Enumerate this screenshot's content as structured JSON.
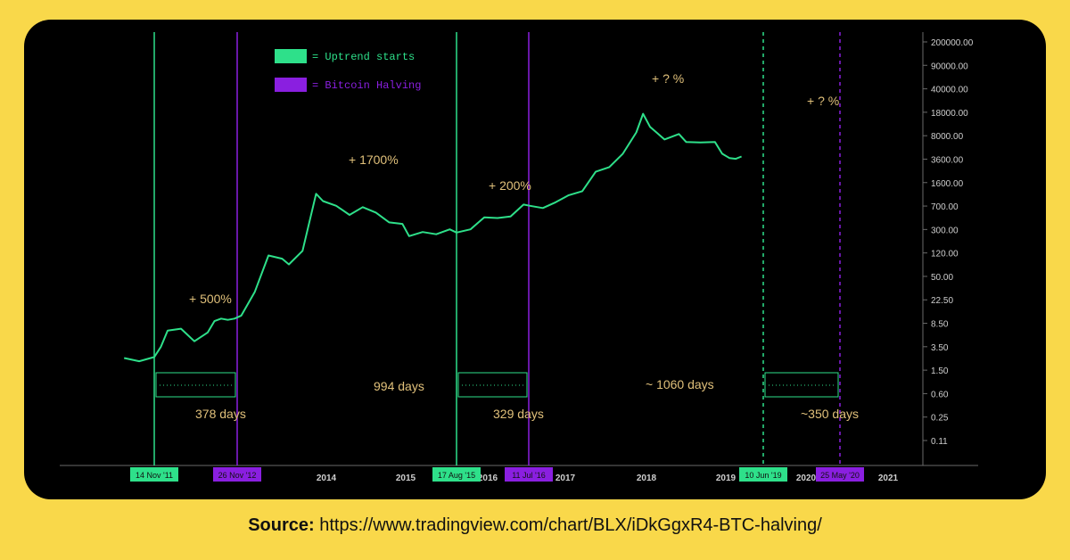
{
  "source": {
    "label": "Source:",
    "url": "https://www.tradingview.com/chart/BLX/iDkGgxR4-BTC-halving/"
  },
  "colors": {
    "page_bg": "#f9d84a",
    "panel_bg": "#000000",
    "uptrend": "#2ee08a",
    "halving": "#8a1fe0",
    "annotation": "#e0c07a",
    "axis_text": "#cfcfcf"
  },
  "chart_data": {
    "type": "line",
    "scale": "log",
    "price_ticks": [
      "200000.00",
      "90000.00",
      "40000.00",
      "18000.00",
      "8000.00",
      "3600.00",
      "1600.00",
      "700.00",
      "300.00",
      "120.00",
      "50.00",
      "22.50",
      "8.50",
      "3.50",
      "1.50",
      "0.60",
      "0.25",
      "0.11"
    ],
    "year_ticks": [
      "2014",
      "2015",
      "2016",
      "2017",
      "2018",
      "2019",
      "2020",
      "2021"
    ],
    "legend": [
      {
        "label": "= Uptrend starts",
        "color_key": "uptrend"
      },
      {
        "label": "= Bitcoin Halving",
        "color_key": "halving"
      }
    ],
    "events": [
      {
        "kind": "uptrend",
        "date_label": "14 Nov '11",
        "style": "solid"
      },
      {
        "kind": "halving",
        "date_label": "26 Nov '12",
        "style": "solid"
      },
      {
        "kind": "uptrend",
        "date_label": "17 Aug '15",
        "style": "solid"
      },
      {
        "kind": "halving",
        "date_label": "11 Jul '16",
        "style": "solid"
      },
      {
        "kind": "uptrend",
        "date_label": "10 Jun '19",
        "style": "dashed"
      },
      {
        "kind": "halving",
        "date_label": "25 May '20",
        "style": "dashed"
      }
    ],
    "annotations": {
      "gains": [
        "+ 500%",
        "+ 1700%",
        "+ 200%",
        "+ ? %",
        "+ ? %"
      ],
      "intervals": [
        "378 days",
        "994 days",
        "329 days",
        "~ 1060 days",
        "~350 days"
      ]
    },
    "series": [
      {
        "points": [
          [
            "2011-09",
            2.8
          ],
          [
            "2011-10",
            2.5
          ],
          [
            "2011-11",
            2.9
          ],
          [
            "2011-12",
            4.2
          ],
          [
            "2012-01",
            7.5
          ],
          [
            "2012-03",
            8.0
          ],
          [
            "2012-05",
            5.1
          ],
          [
            "2012-07",
            7.0
          ],
          [
            "2012-08",
            10.5
          ],
          [
            "2012-09",
            11.5
          ],
          [
            "2012-10",
            11.0
          ],
          [
            "2012-11",
            11.5
          ],
          [
            "2012-12",
            12.8
          ],
          [
            "2013-02",
            30
          ],
          [
            "2013-04",
            110
          ],
          [
            "2013-06",
            98
          ],
          [
            "2013-07",
            80
          ],
          [
            "2013-09",
            130
          ],
          [
            "2013-11",
            1000
          ],
          [
            "2013-12",
            770
          ],
          [
            "2014-02",
            650
          ],
          [
            "2014-04",
            470
          ],
          [
            "2014-06",
            620
          ],
          [
            "2014-08",
            510
          ],
          [
            "2014-10",
            360
          ],
          [
            "2014-12",
            340
          ],
          [
            "2015-01",
            220
          ],
          [
            "2015-03",
            255
          ],
          [
            "2015-05",
            235
          ],
          [
            "2015-07",
            280
          ],
          [
            "2015-08",
            250
          ],
          [
            "2015-10",
            280
          ],
          [
            "2015-12",
            430
          ],
          [
            "2016-02",
            420
          ],
          [
            "2016-04",
            445
          ],
          [
            "2016-06",
            680
          ],
          [
            "2016-07",
            650
          ],
          [
            "2016-09",
            600
          ],
          [
            "2016-11",
            740
          ],
          [
            "2017-01",
            950
          ],
          [
            "2017-03",
            1100
          ],
          [
            "2017-05",
            2200
          ],
          [
            "2017-07",
            2600
          ],
          [
            "2017-09",
            4200
          ],
          [
            "2017-11",
            9000
          ],
          [
            "2017-12",
            17500
          ],
          [
            "2018-01",
            11000
          ],
          [
            "2018-02",
            8800
          ],
          [
            "2018-03",
            7000
          ],
          [
            "2018-05",
            8500
          ],
          [
            "2018-06",
            6400
          ],
          [
            "2018-08",
            6300
          ],
          [
            "2018-10",
            6400
          ],
          [
            "2018-11",
            4200
          ],
          [
            "2018-12",
            3600
          ],
          [
            "2019-01",
            3500
          ],
          [
            "2019-02",
            3800
          ]
        ]
      }
    ]
  }
}
